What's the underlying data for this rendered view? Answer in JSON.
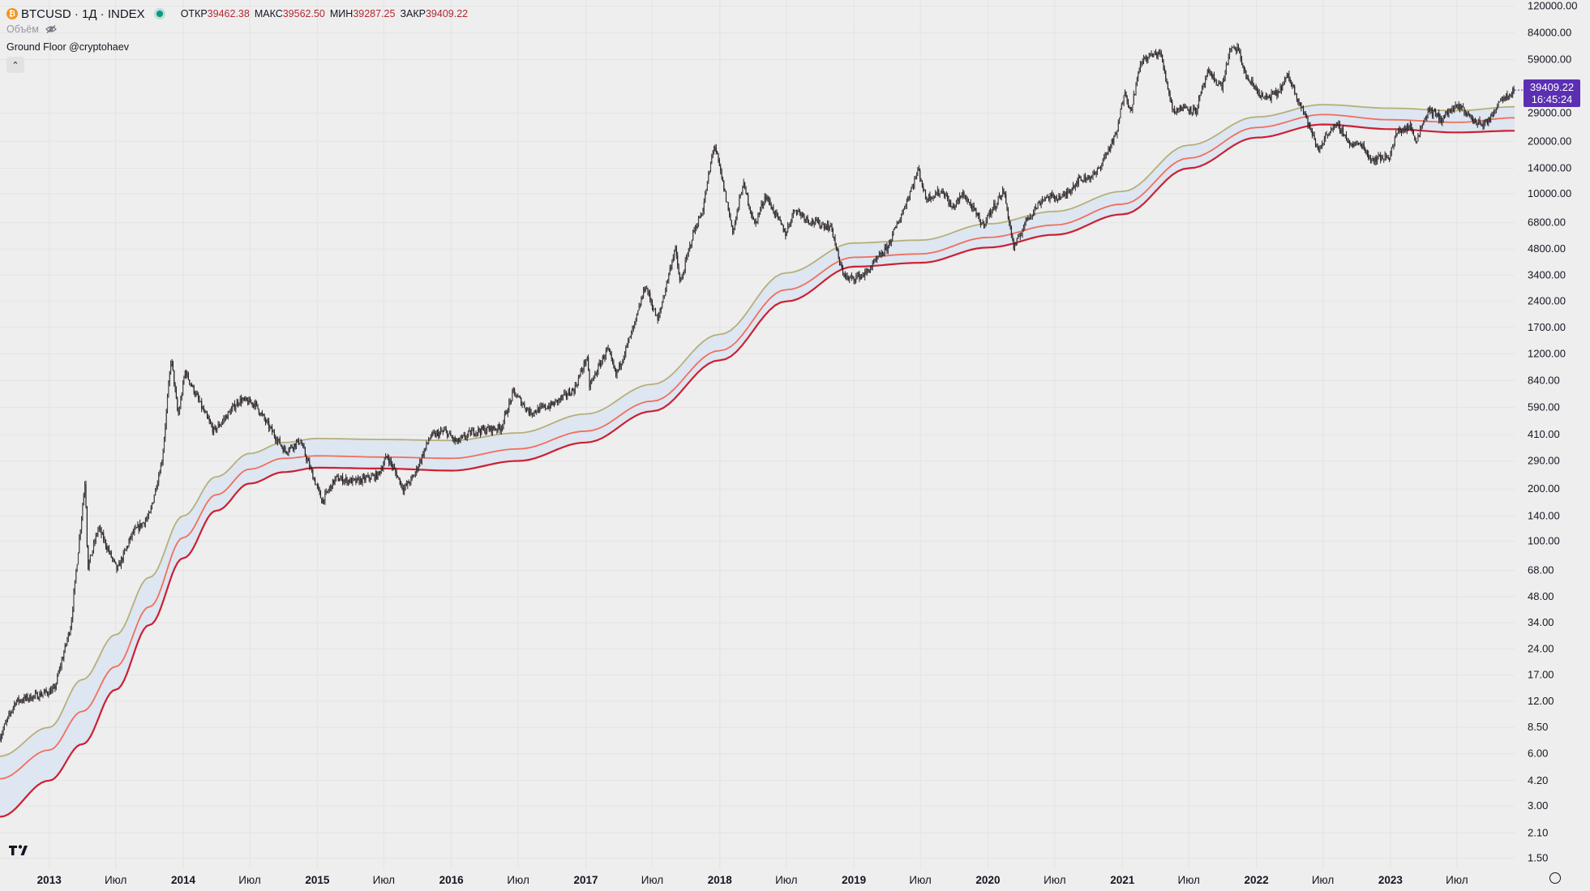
{
  "header": {
    "coin_glyph": "₿",
    "symbol_title": "BTCUSD · 1Д · INDEX",
    "open_label": "ОТКР",
    "open_value": "39462.38",
    "high_label": "МАКС",
    "high_value": "39562.50",
    "low_label": "МИН",
    "low_value": "39287.25",
    "close_label": "ЗАКР",
    "close_value": "39409.22"
  },
  "volume": {
    "label": "Объём"
  },
  "indicator": {
    "label": "Ground Floor @cryptohaev"
  },
  "collapse_glyph": "⌃",
  "last_price": {
    "price": "39409.22",
    "countdown": "16:45:24"
  },
  "colors": {
    "background": "#eeeeee",
    "band_fill": "#dde6f1",
    "line_top": "#b5b07a",
    "line_mid": "#f0705c",
    "line_low": "#cd1f32",
    "candle": "#2a2326",
    "label_tag": "#5b2fb2"
  },
  "chart_data": {
    "type": "candlestick",
    "title": "BTCUSD · 1Д · INDEX",
    "indicator": "Ground Floor @cryptohaev",
    "y_scale": "log",
    "ylim": [
      1.3,
      130000
    ],
    "x_range": [
      "2012-08-20",
      "2023-12-05"
    ],
    "y_ticks": [
      "120000.00",
      "84000.00",
      "59000.00",
      "29000.00",
      "20000.00",
      "14000.00",
      "10000.00",
      "6800.00",
      "4800.00",
      "3400.00",
      "2400.00",
      "1700.00",
      "1200.00",
      "840.00",
      "590.00",
      "410.00",
      "290.00",
      "200.00",
      "140.00",
      "100.00",
      "68.00",
      "48.00",
      "34.00",
      "24.00",
      "17.00",
      "12.00",
      "8.50",
      "6.00",
      "4.20",
      "3.00",
      "2.10",
      "1.50"
    ],
    "x_ticks": [
      {
        "label": "2013",
        "date": "2013-01-01",
        "bold": true
      },
      {
        "label": "Июл",
        "date": "2013-07-01",
        "bold": false
      },
      {
        "label": "2014",
        "date": "2014-01-01",
        "bold": true
      },
      {
        "label": "Июл",
        "date": "2014-07-01",
        "bold": false
      },
      {
        "label": "2015",
        "date": "2015-01-01",
        "bold": true
      },
      {
        "label": "Июл",
        "date": "2015-07-01",
        "bold": false
      },
      {
        "label": "2016",
        "date": "2016-01-01",
        "bold": true
      },
      {
        "label": "Июл",
        "date": "2016-07-01",
        "bold": false
      },
      {
        "label": "2017",
        "date": "2017-01-01",
        "bold": true
      },
      {
        "label": "Июл",
        "date": "2017-07-01",
        "bold": false
      },
      {
        "label": "2018",
        "date": "2018-01-01",
        "bold": true
      },
      {
        "label": "Июл",
        "date": "2018-07-01",
        "bold": false
      },
      {
        "label": "2019",
        "date": "2019-01-01",
        "bold": true
      },
      {
        "label": "Июл",
        "date": "2019-07-01",
        "bold": false
      },
      {
        "label": "2020",
        "date": "2020-01-01",
        "bold": true
      },
      {
        "label": "Июл",
        "date": "2020-07-01",
        "bold": false
      },
      {
        "label": "2021",
        "date": "2021-01-01",
        "bold": true
      },
      {
        "label": "Июл",
        "date": "2021-07-01",
        "bold": false
      },
      {
        "label": "2022",
        "date": "2022-01-01",
        "bold": true
      },
      {
        "label": "Июл",
        "date": "2022-07-01",
        "bold": false
      },
      {
        "label": "2023",
        "date": "2023-01-01",
        "bold": true
      },
      {
        "label": "Июл",
        "date": "2023-07-01",
        "bold": false
      }
    ],
    "price_series": {
      "x": [
        "2012-08-20",
        "2012-10-01",
        "2012-12-01",
        "2013-01-15",
        "2013-03-01",
        "2013-04-09",
        "2013-04-16",
        "2013-05-15",
        "2013-07-05",
        "2013-08-15",
        "2013-10-01",
        "2013-11-05",
        "2013-11-29",
        "2013-12-18",
        "2014-01-06",
        "2014-02-25",
        "2014-03-25",
        "2014-04-10",
        "2014-06-03",
        "2014-07-15",
        "2014-08-18",
        "2014-10-05",
        "2014-11-15",
        "2015-01-14",
        "2015-02-20",
        "2015-04-15",
        "2015-06-15",
        "2015-07-10",
        "2015-08-24",
        "2015-09-20",
        "2015-11-04",
        "2015-12-15",
        "2016-01-15",
        "2016-03-01",
        "2016-05-15",
        "2016-06-18",
        "2016-08-02",
        "2016-10-01",
        "2016-12-01",
        "2017-01-04",
        "2017-01-11",
        "2017-03-01",
        "2017-03-24",
        "2017-05-15",
        "2017-06-12",
        "2017-07-16",
        "2017-09-01",
        "2017-09-15",
        "2017-10-20",
        "2017-11-15",
        "2017-12-17",
        "2018-02-06",
        "2018-03-05",
        "2018-04-06",
        "2018-05-05",
        "2018-06-29",
        "2018-07-24",
        "2018-09-01",
        "2018-11-01",
        "2018-11-25",
        "2018-12-15",
        "2019-02-01",
        "2019-04-02",
        "2019-05-15",
        "2019-06-26",
        "2019-07-15",
        "2019-09-01",
        "2019-09-25",
        "2019-10-26",
        "2019-12-17",
        "2020-02-13",
        "2020-03-12",
        "2020-04-15",
        "2020-06-01",
        "2020-07-25",
        "2020-09-01",
        "2020-10-21",
        "2020-11-15",
        "2020-12-16",
        "2021-01-08",
        "2021-01-22",
        "2021-02-21",
        "2021-03-13",
        "2021-04-14",
        "2021-05-19",
        "2021-06-22",
        "2021-07-20",
        "2021-08-20",
        "2021-09-07",
        "2021-09-29",
        "2021-10-20",
        "2021-11-10",
        "2021-12-04",
        "2022-01-22",
        "2022-02-28",
        "2022-03-28",
        "2022-05-09",
        "2022-06-18",
        "2022-07-20",
        "2022-08-15",
        "2022-09-15",
        "2022-10-15",
        "2022-11-09",
        "2022-12-30",
        "2023-01-20",
        "2023-02-25",
        "2023-03-10",
        "2023-04-14",
        "2023-05-20",
        "2023-06-15",
        "2023-07-13",
        "2023-08-17",
        "2023-09-11",
        "2023-10-01",
        "2023-10-23",
        "2023-11-15",
        "2023-12-05"
      ],
      "y": [
        7.5,
        12,
        13,
        14,
        33,
        230,
        70,
        120,
        68,
        110,
        140,
        300,
        1150,
        520,
        950,
        560,
        430,
        470,
        650,
        620,
        470,
        330,
        380,
        170,
        230,
        220,
        240,
        310,
        200,
        235,
        400,
        430,
        370,
        430,
        450,
        720,
        550,
        610,
        750,
        1150,
        780,
        1280,
        900,
        1780,
        2980,
        1850,
        4900,
        3000,
        5900,
        8000,
        19500,
        6000,
        11500,
        6600,
        9800,
        5900,
        8200,
        7000,
        6400,
        3800,
        3200,
        3450,
        4900,
        8000,
        13800,
        9400,
        10400,
        8200,
        10000,
        6600,
        10400,
        4800,
        7100,
        9500,
        9600,
        11900,
        12900,
        16500,
        22000,
        40500,
        29000,
        57500,
        61500,
        64800,
        30000,
        31600,
        29800,
        49000,
        46000,
        41000,
        66000,
        69000,
        47000,
        35000,
        38000,
        47500,
        30000,
        17700,
        23500,
        24300,
        19000,
        19300,
        15700,
        16500,
        22800,
        24300,
        20000,
        30500,
        26800,
        30500,
        31400,
        26000,
        25100,
        27000,
        34500,
        37000,
        39409.22
      ]
    },
    "series": [
      {
        "key": "top",
        "x": [
          "2012-08-20",
          "2013-01-01",
          "2013-04-01",
          "2013-07-01",
          "2013-10-01",
          "2014-01-01",
          "2014-04-01",
          "2014-07-01",
          "2014-10-01",
          "2015-01-01",
          "2015-07-01",
          "2016-01-01",
          "2016-07-01",
          "2017-01-01",
          "2017-07-01",
          "2018-01-01",
          "2018-07-01",
          "2019-01-01",
          "2019-07-01",
          "2020-01-01",
          "2020-07-01",
          "2021-01-01",
          "2021-07-01",
          "2022-01-01",
          "2022-07-01",
          "2023-01-01",
          "2023-07-01",
          "2023-12-05"
        ],
        "y": [
          5.8,
          8.5,
          16,
          29,
          62,
          140,
          235,
          320,
          370,
          390,
          385,
          380,
          420,
          540,
          800,
          1550,
          3500,
          5200,
          5400,
          6700,
          7900,
          10300,
          19000,
          27600,
          32500,
          31000,
          30000,
          31600
        ]
      },
      {
        "key": "mid",
        "x": [
          "2012-08-20",
          "2013-01-01",
          "2013-04-01",
          "2013-07-01",
          "2013-10-01",
          "2014-01-01",
          "2014-04-01",
          "2014-07-01",
          "2014-10-01",
          "2015-01-01",
          "2015-07-01",
          "2016-01-01",
          "2016-07-01",
          "2017-01-01",
          "2017-07-01",
          "2018-01-01",
          "2018-07-01",
          "2019-01-01",
          "2019-07-01",
          "2020-01-01",
          "2020-07-01",
          "2021-01-01",
          "2021-07-01",
          "2022-01-01",
          "2022-07-01",
          "2023-01-01",
          "2023-07-01",
          "2023-12-05"
        ],
        "y": [
          4.3,
          6.3,
          10.5,
          19,
          42,
          105,
          185,
          260,
          300,
          310,
          305,
          300,
          340,
          430,
          640,
          1250,
          2800,
          4300,
          4500,
          5600,
          6600,
          8700,
          16000,
          24000,
          28500,
          26600,
          25700,
          27300
        ]
      },
      {
        "key": "low",
        "x": [
          "2012-08-20",
          "2013-01-01",
          "2013-04-01",
          "2013-07-01",
          "2013-10-01",
          "2014-01-01",
          "2014-04-01",
          "2014-07-01",
          "2014-10-01",
          "2015-01-01",
          "2015-07-01",
          "2016-01-01",
          "2016-07-01",
          "2017-01-01",
          "2017-07-01",
          "2018-01-01",
          "2018-07-01",
          "2019-01-01",
          "2019-07-01",
          "2020-01-01",
          "2020-07-01",
          "2021-01-01",
          "2021-07-01",
          "2022-01-01",
          "2022-07-01",
          "2023-01-01",
          "2023-07-01",
          "2023-12-05"
        ],
        "y": [
          2.6,
          4.2,
          6.8,
          14,
          33,
          80,
          150,
          215,
          250,
          265,
          262,
          255,
          290,
          370,
          560,
          1100,
          2400,
          3800,
          4000,
          4900,
          5800,
          7600,
          14000,
          21000,
          25000,
          23500,
          22500,
          23000
        ]
      }
    ]
  }
}
